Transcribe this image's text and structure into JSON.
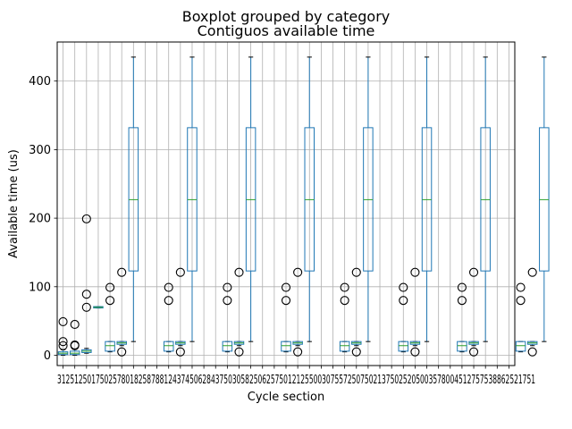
{
  "chart_data": {
    "type": "box",
    "suptitle": "Boxplot grouped by category",
    "title": "Contiguos available time",
    "xlabel": "Cycle section",
    "ylabel": "Available time (us)",
    "ylim": [
      -15,
      457
    ],
    "y_ticks": [
      0,
      100,
      200,
      300,
      400
    ],
    "grid": true,
    "colors": {
      "box": "#1f77b4",
      "median": "#2ca02c",
      "grid": "#b0b0b0",
      "outlier": "#000000"
    },
    "x_tick_labels": [
      "3125",
      "625",
      "1250",
      "1875",
      "2500",
      "3125",
      "3750",
      "4375",
      "5000",
      "5625",
      "6250",
      "6875",
      "7500",
      "8125",
      "8750",
      "9375",
      "10000",
      "10625",
      "11250",
      "11875",
      "12500",
      "13125",
      "13750",
      "14375",
      "15000",
      "15625",
      "16250",
      "16875",
      "17500",
      "18125",
      "18750",
      "19375",
      "20000",
      "20625",
      "21250",
      "21875",
      "22500",
      "22751",
      "22751"
    ],
    "x_tick_labels_visible_text": "3125125017502578018258788124374506284375030582506257501212550030755725075021375025205003578004512757538862521751",
    "boxes": [
      {
        "x": 1,
        "q1": 1,
        "median": 3,
        "q3": 5,
        "whislo": 0,
        "whishi": 8,
        "fliers": [
          14,
          20,
          49
        ]
      },
      {
        "x": 2,
        "q1": 1,
        "median": 3,
        "q3": 6,
        "whislo": 0,
        "whishi": 9,
        "fliers": [
          14,
          15,
          45
        ]
      },
      {
        "x": 3,
        "q1": 4,
        "median": 6,
        "q3": 8,
        "whislo": 3,
        "whishi": 10,
        "fliers": [
          70,
          89,
          199
        ]
      },
      {
        "x": 4,
        "q1": 69,
        "median": 70,
        "q3": 71,
        "whislo": 69,
        "whishi": 71,
        "fliers": []
      },
      {
        "x": 5,
        "q1": 6,
        "median": 14,
        "q3": 20,
        "whislo": 5,
        "whishi": 20,
        "fliers": [
          80,
          99
        ]
      },
      {
        "x": 6,
        "q1": 16,
        "median": 18,
        "q3": 20,
        "whislo": 14,
        "whishi": 20,
        "fliers": [
          5,
          121
        ]
      },
      {
        "x": 7,
        "q1": 123,
        "median": 227,
        "q3": 332,
        "whislo": 20,
        "whishi": 435,
        "fliers": []
      },
      {
        "x": 10,
        "q1": 6,
        "median": 14,
        "q3": 20,
        "whislo": 5,
        "whishi": 20,
        "fliers": [
          80,
          99
        ]
      },
      {
        "x": 11,
        "q1": 16,
        "median": 18,
        "q3": 20,
        "whislo": 14,
        "whishi": 20,
        "fliers": [
          5,
          121
        ]
      },
      {
        "x": 12,
        "q1": 123,
        "median": 227,
        "q3": 332,
        "whislo": 20,
        "whishi": 435,
        "fliers": []
      },
      {
        "x": 15,
        "q1": 6,
        "median": 14,
        "q3": 20,
        "whislo": 5,
        "whishi": 20,
        "fliers": [
          80,
          99
        ]
      },
      {
        "x": 16,
        "q1": 16,
        "median": 18,
        "q3": 20,
        "whislo": 14,
        "whishi": 20,
        "fliers": [
          5,
          121
        ]
      },
      {
        "x": 17,
        "q1": 123,
        "median": 227,
        "q3": 332,
        "whislo": 20,
        "whishi": 435,
        "fliers": []
      },
      {
        "x": 20,
        "q1": 6,
        "median": 14,
        "q3": 20,
        "whislo": 5,
        "whishi": 20,
        "fliers": [
          80,
          99
        ]
      },
      {
        "x": 21,
        "q1": 16,
        "median": 18,
        "q3": 20,
        "whislo": 14,
        "whishi": 20,
        "fliers": [
          5,
          121
        ]
      },
      {
        "x": 22,
        "q1": 123,
        "median": 227,
        "q3": 332,
        "whislo": 20,
        "whishi": 435,
        "fliers": []
      },
      {
        "x": 25,
        "q1": 6,
        "median": 14,
        "q3": 20,
        "whislo": 5,
        "whishi": 20,
        "fliers": [
          80,
          99
        ]
      },
      {
        "x": 26,
        "q1": 16,
        "median": 18,
        "q3": 20,
        "whislo": 14,
        "whishi": 20,
        "fliers": [
          5,
          121
        ]
      },
      {
        "x": 27,
        "q1": 123,
        "median": 227,
        "q3": 332,
        "whislo": 20,
        "whishi": 435,
        "fliers": []
      },
      {
        "x": 30,
        "q1": 6,
        "median": 14,
        "q3": 20,
        "whislo": 5,
        "whishi": 20,
        "fliers": [
          80,
          99
        ]
      },
      {
        "x": 31,
        "q1": 16,
        "median": 18,
        "q3": 20,
        "whislo": 14,
        "whishi": 20,
        "fliers": [
          5,
          121
        ]
      },
      {
        "x": 32,
        "q1": 123,
        "median": 227,
        "q3": 332,
        "whislo": 20,
        "whishi": 435,
        "fliers": []
      },
      {
        "x": 35,
        "q1": 6,
        "median": 14,
        "q3": 20,
        "whislo": 5,
        "whishi": 20,
        "fliers": [
          80,
          99
        ]
      },
      {
        "x": 36,
        "q1": 16,
        "median": 18,
        "q3": 20,
        "whislo": 14,
        "whishi": 20,
        "fliers": [
          5,
          121
        ]
      },
      {
        "x": 37,
        "q1": 123,
        "median": 227,
        "q3": 332,
        "whislo": 20,
        "whishi": 435,
        "fliers": []
      },
      {
        "x": 40,
        "q1": 6,
        "median": 14,
        "q3": 20,
        "whislo": 5,
        "whishi": 20,
        "fliers": [
          80,
          99
        ]
      },
      {
        "x": 41,
        "q1": 16,
        "median": 18,
        "q3": 20,
        "whislo": 14,
        "whishi": 20,
        "fliers": [
          5,
          121
        ]
      },
      {
        "x": 42,
        "q1": 123,
        "median": 227,
        "q3": 332,
        "whislo": 20,
        "whishi": 435,
        "fliers": []
      },
      {
        "x": 45,
        "q1": 6,
        "median": 14,
        "q3": 20,
        "whislo": 5,
        "whishi": 20,
        "fliers": [
          80,
          99
        ]
      },
      {
        "x": 46,
        "q1": 16,
        "median": 18,
        "q3": 20,
        "whislo": 14,
        "whishi": 20,
        "fliers": [
          5,
          121
        ]
      },
      {
        "x": 47,
        "q1": 123,
        "median": 225,
        "q3": 329,
        "whislo": 20,
        "whishi": 431,
        "fliers": []
      }
    ]
  }
}
